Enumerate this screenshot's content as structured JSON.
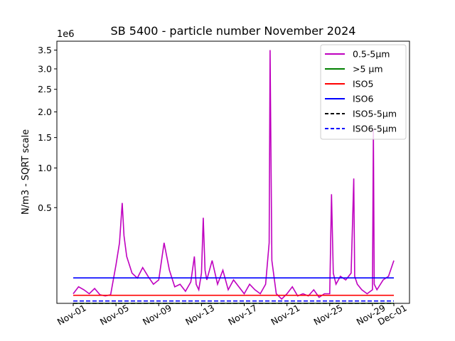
{
  "chart_data": {
    "type": "line",
    "title": "SB 5400 - particle number November 2024",
    "ylabel": "N/m3 - SQRT scale",
    "y_offset_label": "1e6",
    "y_scale": "sqrt",
    "ylim": [
      0,
      3.75
    ],
    "xlim": [
      "2024-11-01",
      "2024-12-01"
    ],
    "grid": false,
    "legend_position": "top-right",
    "x_tick_labels": [
      "Nov-01",
      "Nov-05",
      "Nov-09",
      "Nov-13",
      "Nov-17",
      "Nov-21",
      "Nov-25",
      "Nov-29",
      "Dec-01"
    ],
    "x_tick_dates": [
      "2024-11-01",
      "2024-11-05",
      "2024-11-09",
      "2024-11-13",
      "2024-11-17",
      "2024-11-21",
      "2024-11-25",
      "2024-11-29",
      "2024-12-01"
    ],
    "y_ticks": [
      0.5,
      1.0,
      1.5,
      2.0,
      2.5,
      3.0,
      3.5
    ],
    "y_tick_labels": [
      "0.5",
      "1.0",
      "1.5",
      "2.0",
      "2.5",
      "3.0",
      "3.5"
    ],
    "series": [
      {
        "name": "0.5-5µm",
        "color": "#bf00bf",
        "style": "solid",
        "x": [
          "2024-11-01",
          "2024-11-01 12:00",
          "2024-11-02",
          "2024-11-02 12:00",
          "2024-11-03",
          "2024-11-03 12:00",
          "2024-11-04",
          "2024-11-04 12:00",
          "2024-11-05",
          "2024-11-05 08:00",
          "2024-11-05 14:00",
          "2024-11-05 18:00",
          "2024-11-06",
          "2024-11-06 12:00",
          "2024-11-07",
          "2024-11-07 12:00",
          "2024-11-08",
          "2024-11-08 12:00",
          "2024-11-09",
          "2024-11-09 12:00",
          "2024-11-10",
          "2024-11-10 12:00",
          "2024-11-11",
          "2024-11-11 12:00",
          "2024-11-12",
          "2024-11-12 08:00",
          "2024-11-12 12:00",
          "2024-11-12 18:00",
          "2024-11-13",
          "2024-11-13 04:00",
          "2024-11-13 08:00",
          "2024-11-13 12:00",
          "2024-11-14",
          "2024-11-14 12:00",
          "2024-11-15",
          "2024-11-15 12:00",
          "2024-11-16",
          "2024-11-16 12:00",
          "2024-11-17",
          "2024-11-17 12:00",
          "2024-11-18",
          "2024-11-18 12:00",
          "2024-11-19",
          "2024-11-19 08:00",
          "2024-11-19 10:00",
          "2024-11-19 14:00",
          "2024-11-20",
          "2024-11-20 12:00",
          "2024-11-21",
          "2024-11-21 12:00",
          "2024-11-22",
          "2024-11-22 12:00",
          "2024-11-23",
          "2024-11-23 12:00",
          "2024-11-24",
          "2024-11-24 12:00",
          "2024-11-25",
          "2024-11-25 04:00",
          "2024-11-25 08:00",
          "2024-11-25 14:00",
          "2024-11-26",
          "2024-11-26 12:00",
          "2024-11-27",
          "2024-11-27 06:00",
          "2024-11-27 08:00",
          "2024-11-27 14:00",
          "2024-11-28",
          "2024-11-28 12:00",
          "2024-11-29",
          "2024-11-29 02:00",
          "2024-11-29 04:00",
          "2024-11-29 10:00",
          "2024-11-30",
          "2024-11-30 12:00",
          "2024-12-01"
        ],
        "y": [
          0.005,
          0.015,
          0.01,
          0.005,
          0.012,
          0.004,
          0.003,
          0.004,
          0.08,
          0.2,
          0.55,
          0.25,
          0.12,
          0.05,
          0.035,
          0.07,
          0.04,
          0.02,
          0.03,
          0.2,
          0.06,
          0.015,
          0.02,
          0.008,
          0.025,
          0.12,
          0.02,
          0.01,
          0.05,
          0.4,
          0.06,
          0.03,
          0.1,
          0.02,
          0.06,
          0.01,
          0.03,
          0.015,
          0.005,
          0.02,
          0.01,
          0.005,
          0.02,
          0.2,
          3.5,
          0.1,
          0.005,
          0.001,
          0.005,
          0.015,
          0.003,
          0.005,
          0.003,
          0.01,
          0.002,
          0.005,
          0.005,
          0.65,
          0.05,
          0.02,
          0.04,
          0.03,
          0.05,
          0.85,
          0.04,
          0.02,
          0.01,
          0.005,
          0.01,
          1.65,
          0.02,
          0.01,
          0.03,
          0.04,
          0.1
        ]
      },
      {
        "name": ">5 µm",
        "color": "#008000",
        "style": "solid",
        "x": [
          "2024-11-01",
          "2024-12-01"
        ],
        "y": [
          0.0,
          0.0
        ]
      },
      {
        "name": "ISO5",
        "color": "#ff0000",
        "style": "solid",
        "x": [
          "2024-11-01",
          "2024-12-01"
        ],
        "y": [
          0.0035,
          0.0035
        ]
      },
      {
        "name": "ISO6",
        "color": "#0000ff",
        "style": "solid",
        "x": [
          "2024-11-01",
          "2024-12-01"
        ],
        "y": [
          0.0352,
          0.0352
        ]
      },
      {
        "name": "ISO5-5µm",
        "color": "#000000",
        "style": "dashed",
        "x": [
          "2024-11-01",
          "2024-12-01"
        ],
        "y": [
          0.0,
          0.0
        ]
      },
      {
        "name": "ISO6-5µm",
        "color": "#0000ff",
        "style": "dashed",
        "x": [
          "2024-11-01",
          "2024-12-01"
        ],
        "y": [
          0.0003,
          0.0003
        ]
      }
    ]
  }
}
